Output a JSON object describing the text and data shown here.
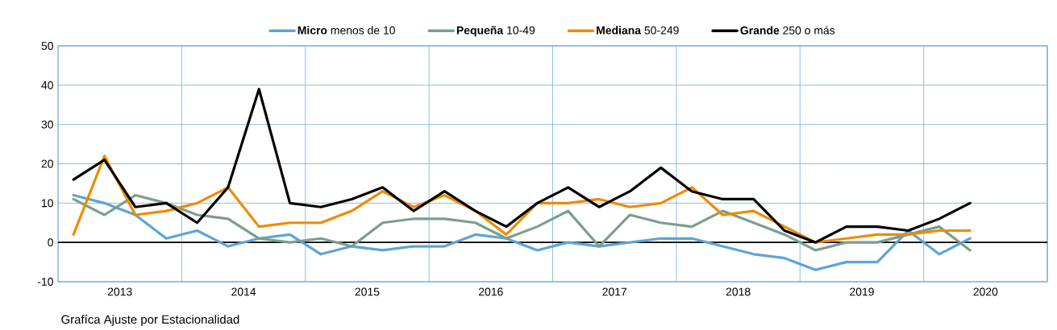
{
  "chart_data": {
    "type": "line",
    "annotations": [
      "Grafíca Ajuste por Estacionalidad"
    ],
    "x": [
      2013.125,
      2013.375,
      2013.625,
      2013.875,
      2014.125,
      2014.375,
      2014.625,
      2014.875,
      2015.125,
      2015.375,
      2015.625,
      2015.875,
      2016.125,
      2016.375,
      2016.625,
      2016.875,
      2017.125,
      2017.375,
      2017.625,
      2017.875,
      2018.125,
      2018.375,
      2018.625,
      2018.875,
      2019.125,
      2019.375,
      2019.625,
      2019.875,
      2020.125,
      2020.375
    ],
    "series": [
      {
        "name": "**Micro** menos de 10",
        "color": "#5fa3d6",
        "values": [
          12,
          10,
          7,
          1,
          3,
          -1,
          1,
          2,
          -3,
          -1,
          -2,
          -1,
          -1,
          2,
          1,
          -2,
          0,
          -1,
          0,
          1,
          1,
          -1,
          -3,
          -4,
          -7,
          -5,
          -5,
          3,
          -3,
          1
        ]
      },
      {
        "name": "**Pequeña** 10-49",
        "color": "#7a9e8f",
        "values": [
          11,
          7,
          12,
          10,
          7,
          6,
          1,
          0,
          1,
          -1,
          5,
          6,
          6,
          5,
          1,
          4,
          8,
          -1,
          7,
          5,
          4,
          8,
          5,
          2,
          -2,
          0,
          0,
          2,
          4,
          -2
        ]
      },
      {
        "name": "**Mediana** 50-249",
        "color": "#ee8b00",
        "values": [
          2,
          22,
          7,
          8,
          10,
          14,
          4,
          5,
          5,
          8,
          13,
          9,
          12,
          8,
          2,
          10,
          10,
          11,
          9,
          10,
          14,
          7,
          8,
          4,
          0,
          1,
          2,
          2,
          3,
          3
        ]
      },
      {
        "name": "**Grande** 250 o más",
        "color": "#000000",
        "values": [
          16,
          21,
          9,
          10,
          5,
          14,
          39,
          10,
          9,
          11,
          14,
          8,
          13,
          8,
          4,
          10,
          14,
          9,
          13,
          19,
          13,
          11,
          11,
          3,
          0,
          4,
          4,
          3,
          6,
          10
        ]
      }
    ],
    "xlim": [
      2013,
      2021
    ],
    "xticks": [
      {
        "value": 2013.5,
        "label": "2013"
      },
      {
        "value": 2014,
        "label": null
      },
      {
        "value": 2014.5,
        "label": "2014"
      },
      {
        "value": 2015,
        "label": null
      },
      {
        "value": 2015.5,
        "label": "2015"
      },
      {
        "value": 2016,
        "label": null
      },
      {
        "value": 2016.5,
        "label": "2016"
      },
      {
        "value": 2017,
        "label": null
      },
      {
        "value": 2017.5,
        "label": "2017"
      },
      {
        "value": 2018,
        "label": null
      },
      {
        "value": 2018.5,
        "label": "2018"
      },
      {
        "value": 2019,
        "label": null
      },
      {
        "value": 2019.5,
        "label": "2019"
      },
      {
        "value": 2020,
        "label": null
      },
      {
        "value": 2020.5,
        "label": "2020"
      },
      {
        "value": 2021,
        "label": null
      }
    ],
    "ylim": [
      -10,
      50
    ],
    "yticks": [
      -10,
      0,
      10,
      20,
      30,
      40,
      50
    ],
    "ref_lines": [
      {
        "axis": "y",
        "value": 0,
        "color": "#000000"
      }
    ],
    "grid": true,
    "legend": "top",
    "marker": "none",
    "line_style": "solid"
  }
}
